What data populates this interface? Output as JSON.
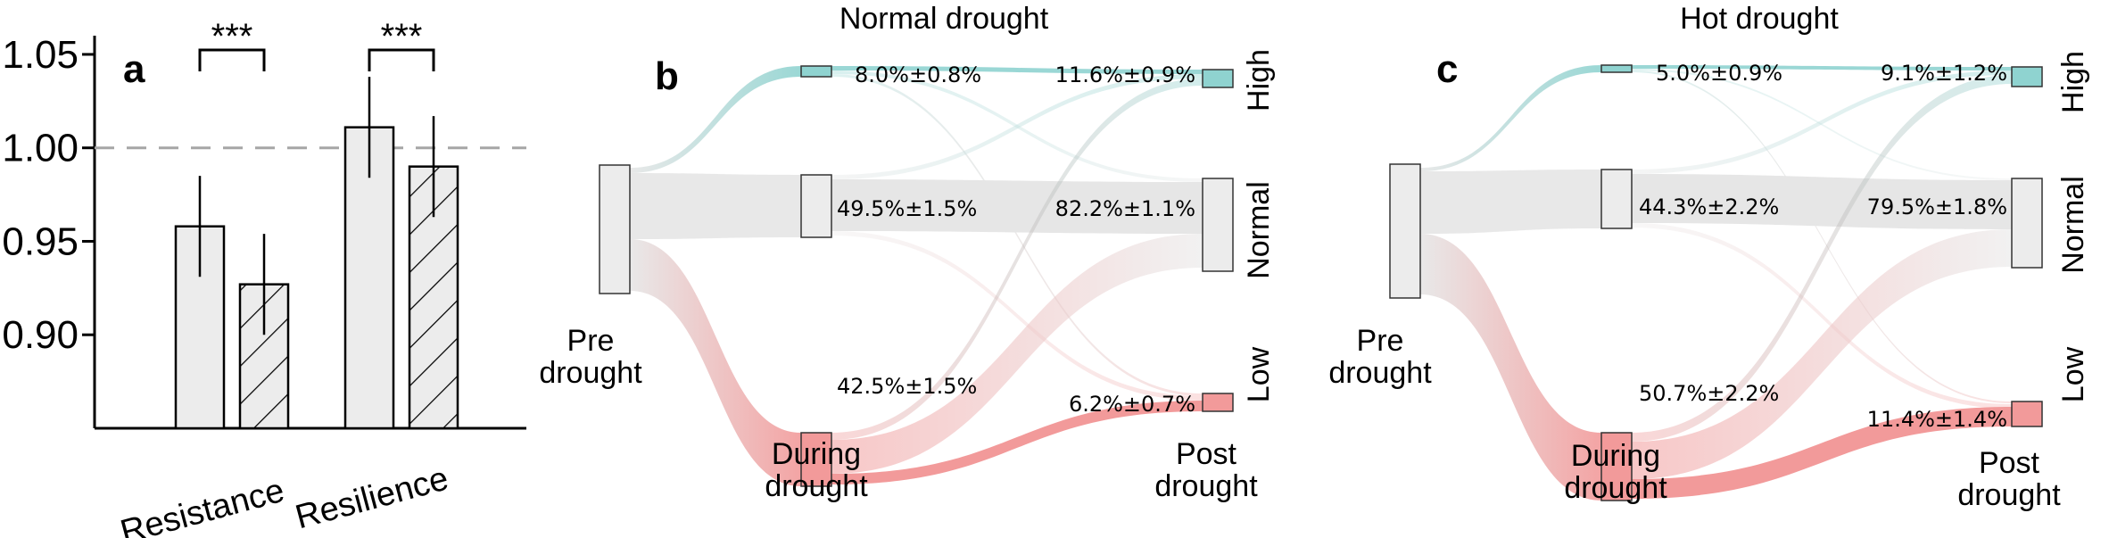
{
  "chart_data": [
    {
      "panel": "a",
      "type": "bar",
      "categories": [
        "Resistance",
        "Resilience"
      ],
      "series": [
        {
          "pattern": "solid",
          "values": [
            0.958,
            1.011
          ],
          "errors": [
            0.027,
            0.027
          ]
        },
        {
          "pattern": "hatched",
          "values": [
            0.927,
            0.99
          ],
          "errors": [
            0.027,
            0.027
          ]
        }
      ],
      "reference_line": {
        "value": 1.0,
        "style": "dashed"
      },
      "yticks": [
        "0.90",
        "0.95",
        "1.00",
        "1.05"
      ],
      "ylim": [
        0.85,
        1.06
      ],
      "significance": [
        "***",
        "***"
      ],
      "colors": {
        "bar_fill": "#ececec",
        "reference": "#a6a6a6"
      }
    },
    {
      "panel": "b",
      "type": "sankey",
      "title": "Normal drought",
      "stages": [
        "Pre\ndrought",
        "During\ndrought",
        "Post\ndrought"
      ],
      "classes": [
        "High",
        "Normal",
        "Low"
      ],
      "during": [
        {
          "class": "High",
          "value": 8.0,
          "label": "8.0%±0.8%"
        },
        {
          "class": "Normal",
          "value": 49.5,
          "label": "49.5%±1.5%"
        },
        {
          "class": "Low",
          "value": 42.5,
          "label": "42.5%±1.5%"
        }
      ],
      "post": [
        {
          "class": "High",
          "value": 11.6,
          "label": "11.6%±0.9%"
        },
        {
          "class": "Normal",
          "value": 82.2,
          "label": "82.2%±1.1%"
        },
        {
          "class": "Low",
          "value": 6.2,
          "label": "6.2%±0.7%"
        }
      ]
    },
    {
      "panel": "c",
      "type": "sankey",
      "title": "Hot drought",
      "stages": [
        "Pre\ndrought",
        "During\ndrought",
        "Post\ndrought"
      ],
      "classes": [
        "High",
        "Normal",
        "Low"
      ],
      "during": [
        {
          "class": "High",
          "value": 5.0,
          "label": "5.0%±0.9%"
        },
        {
          "class": "Normal",
          "value": 44.3,
          "label": "44.3%±2.2%"
        },
        {
          "class": "Low",
          "value": 50.7,
          "label": "50.7%±2.2%"
        }
      ],
      "post": [
        {
          "class": "High",
          "value": 9.1,
          "label": "9.1%±1.2%"
        },
        {
          "class": "Normal",
          "value": 79.5,
          "label": "79.5%±1.8%"
        },
        {
          "class": "Low",
          "value": 11.4,
          "label": "11.4%±1.4%"
        }
      ]
    }
  ],
  "colors": {
    "high": "#8fd3d0",
    "normal": "#e6e6e6",
    "low": "#f29a9a",
    "node_fill_normal": "#ececec",
    "border": "#333333"
  }
}
